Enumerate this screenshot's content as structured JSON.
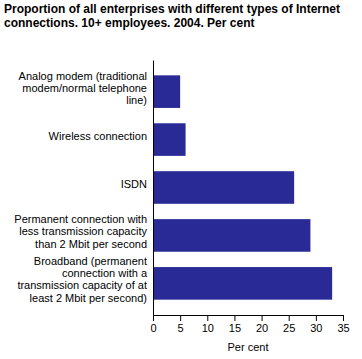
{
  "chart_data": {
    "type": "bar",
    "orientation": "horizontal",
    "title": "Proportion of all enterprises with different types of Internet connections. 10+ employees. 2004. Per cent",
    "categories": [
      "Analog modem (traditional modem/normal telephone line)",
      "Wireless connection",
      "ISDN",
      "Permanent connection with less transmission capacity than 2 Mbit per second",
      "Broadband (permanent connection with a transmission capacity of at least 2 Mbit per second)"
    ],
    "values": [
      5,
      6,
      26,
      29,
      33
    ],
    "color": "#2a2a96",
    "xlabel": "Per cent",
    "xlim": [
      0,
      35
    ],
    "xticks": [
      0,
      5,
      10,
      15,
      20,
      25,
      30,
      35
    ],
    "grid": false
  }
}
